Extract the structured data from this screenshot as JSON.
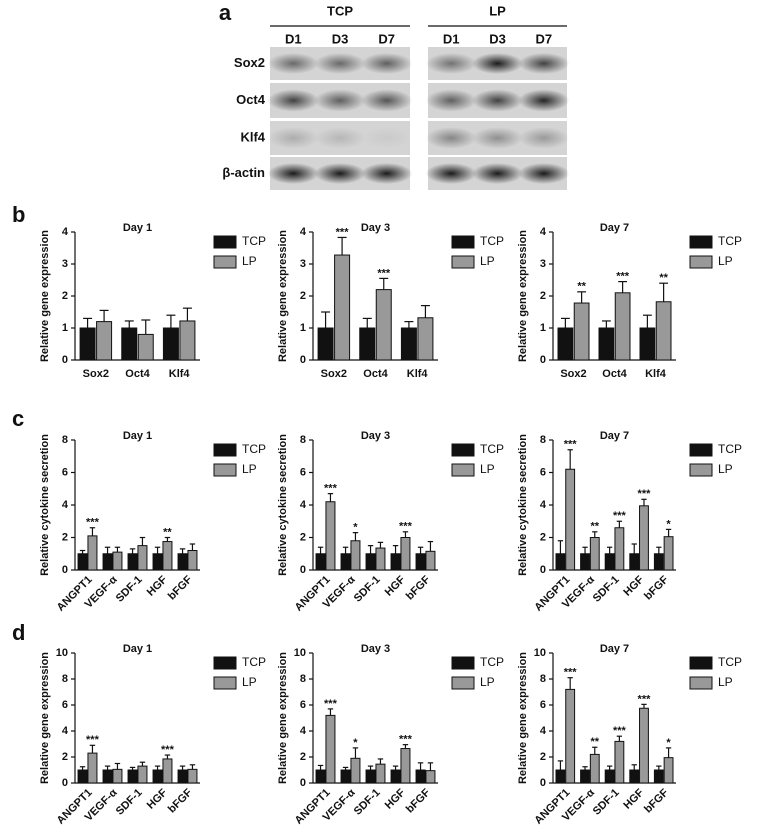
{
  "panel_labels": [
    "a",
    "b",
    "c",
    "d"
  ],
  "blot": {
    "groups": [
      "TCP",
      "LP"
    ],
    "timepoints": [
      [
        "D1",
        "D3",
        "D7"
      ],
      [
        "D1",
        "D3",
        "D7"
      ]
    ],
    "rows": [
      "Sox2",
      "Oct4",
      "Klf4",
      "β-actin"
    ]
  },
  "chart_data": [
    {
      "type": "bar",
      "title": "Day 1",
      "y_label": "Relative gene expression",
      "categories": [
        "Sox2",
        "Oct4",
        "Klf4"
      ],
      "ylim": [
        0,
        4
      ],
      "yticks": [
        0,
        1,
        2,
        3,
        4
      ],
      "series": [
        {
          "name": "TCP",
          "color": "#111111",
          "values": [
            1,
            1,
            1
          ],
          "errors": [
            0.3,
            0.22,
            0.4
          ]
        },
        {
          "name": "LP",
          "color": "#999999",
          "values": [
            1.2,
            0.8,
            1.22
          ],
          "errors": [
            0.35,
            0.45,
            0.4
          ]
        }
      ]
    },
    {
      "type": "bar",
      "title": "Day 3",
      "y_label": "Relative gene expression",
      "categories": [
        "Sox2",
        "Oct4",
        "Klf4"
      ],
      "ylim": [
        0,
        4
      ],
      "yticks": [
        0,
        1,
        2,
        3,
        4
      ],
      "series": [
        {
          "name": "TCP",
          "color": "#111111",
          "values": [
            1,
            1,
            1
          ],
          "errors": [
            0.5,
            0.3,
            0.2
          ]
        },
        {
          "name": "LP",
          "color": "#999999",
          "values": [
            3.28,
            2.2,
            1.32
          ],
          "errors": [
            0.55,
            0.35,
            0.38
          ],
          "stars": [
            "***",
            "***",
            null
          ]
        }
      ]
    },
    {
      "type": "bar",
      "title": "Day 7",
      "y_label": "Relative gene expression",
      "categories": [
        "Sox2",
        "Oct4",
        "Klf4"
      ],
      "ylim": [
        0,
        4
      ],
      "yticks": [
        0,
        1,
        2,
        3,
        4
      ],
      "series": [
        {
          "name": "TCP",
          "color": "#111111",
          "values": [
            1,
            1,
            1
          ],
          "errors": [
            0.3,
            0.22,
            0.4
          ]
        },
        {
          "name": "LP",
          "color": "#999999",
          "values": [
            1.78,
            2.1,
            1.82
          ],
          "errors": [
            0.35,
            0.35,
            0.58
          ],
          "stars": [
            "**",
            "***",
            "**"
          ]
        }
      ]
    },
    {
      "type": "bar",
      "title": "Day 1",
      "y_label": "Relative cytokine secretion",
      "categories": [
        "ANGPT1",
        "VEGF-α",
        "SDF-1",
        "HGF",
        "bFGF"
      ],
      "ylim": [
        0,
        8
      ],
      "yticks": [
        0,
        2,
        4,
        6,
        8
      ],
      "series": [
        {
          "name": "TCP",
          "color": "#111111",
          "values": [
            1,
            1,
            1,
            1,
            1
          ],
          "errors": [
            0.2,
            0.4,
            0.3,
            0.4,
            0.3
          ]
        },
        {
          "name": "LP",
          "color": "#999999",
          "values": [
            2.1,
            1.1,
            1.5,
            1.75,
            1.2
          ],
          "errors": [
            0.5,
            0.3,
            0.5,
            0.25,
            0.4
          ],
          "stars": [
            "***",
            null,
            null,
            "**",
            null
          ]
        }
      ]
    },
    {
      "type": "bar",
      "title": "Day 3",
      "y_label": "Relative cytokine secretion",
      "categories": [
        "ANGPT1",
        "VEGF-α",
        "SDF-1",
        "HGF",
        "bFGF"
      ],
      "ylim": [
        0,
        8
      ],
      "yticks": [
        0,
        2,
        4,
        6,
        8
      ],
      "series": [
        {
          "name": "TCP",
          "color": "#111111",
          "values": [
            1,
            1,
            1,
            1,
            1
          ],
          "errors": [
            0.4,
            0.4,
            0.5,
            0.5,
            0.4
          ]
        },
        {
          "name": "LP",
          "color": "#999999",
          "values": [
            4.2,
            1.8,
            1.35,
            2.0,
            1.15
          ],
          "errors": [
            0.5,
            0.5,
            0.35,
            0.35,
            0.6
          ],
          "stars": [
            "***",
            "*",
            null,
            "***",
            null
          ]
        }
      ]
    },
    {
      "type": "bar",
      "title": "Day 7",
      "y_label": "Relative cytokine secretion",
      "categories": [
        "ANGPT1",
        "VEGF-α",
        "SDF-1",
        "HGF",
        "bFGF"
      ],
      "ylim": [
        0,
        8
      ],
      "yticks": [
        0,
        2,
        4,
        6,
        8
      ],
      "series": [
        {
          "name": "TCP",
          "color": "#111111",
          "values": [
            1,
            1,
            1,
            1,
            1
          ],
          "errors": [
            0.8,
            0.4,
            0.4,
            0.6,
            0.4
          ]
        },
        {
          "name": "LP",
          "color": "#999999",
          "values": [
            6.2,
            2.0,
            2.6,
            3.95,
            2.05
          ],
          "errors": [
            1.2,
            0.35,
            0.4,
            0.4,
            0.45
          ],
          "stars": [
            "***",
            "**",
            "***",
            "***",
            "*"
          ]
        }
      ]
    },
    {
      "type": "bar",
      "title": "Day 1",
      "y_label": "Relative gene expression",
      "categories": [
        "ANGPT1",
        "VEGF-α",
        "SDF-1",
        "HGF",
        "bFGF"
      ],
      "ylim": [
        0,
        10
      ],
      "yticks": [
        0,
        2,
        4,
        6,
        8,
        10
      ],
      "series": [
        {
          "name": "TCP",
          "color": "#111111",
          "values": [
            1,
            1,
            1,
            1,
            1
          ],
          "errors": [
            0.25,
            0.3,
            0.2,
            0.3,
            0.3
          ]
        },
        {
          "name": "LP",
          "color": "#999999",
          "values": [
            2.3,
            1.05,
            1.3,
            1.85,
            1.05
          ],
          "errors": [
            0.6,
            0.45,
            0.3,
            0.3,
            0.35
          ],
          "stars": [
            "***",
            null,
            null,
            "***",
            null
          ]
        }
      ]
    },
    {
      "type": "bar",
      "title": "Day 3",
      "y_label": "Relative gene expression",
      "categories": [
        "ANGPT1",
        "VEGF-α",
        "SDF-1",
        "HGF",
        "bFGF"
      ],
      "ylim": [
        0,
        10
      ],
      "yticks": [
        0,
        2,
        4,
        6,
        8,
        10
      ],
      "series": [
        {
          "name": "TCP",
          "color": "#111111",
          "values": [
            1,
            1,
            1,
            1,
            1
          ],
          "errors": [
            0.35,
            0.2,
            0.3,
            0.3,
            0.55
          ]
        },
        {
          "name": "LP",
          "color": "#999999",
          "values": [
            5.2,
            1.9,
            1.45,
            2.65,
            0.95
          ],
          "errors": [
            0.5,
            0.8,
            0.4,
            0.3,
            0.6
          ],
          "stars": [
            "***",
            "*",
            null,
            "***",
            null
          ]
        }
      ]
    },
    {
      "type": "bar",
      "title": "Day 7",
      "y_label": "Relative gene expression",
      "categories": [
        "ANGPT1",
        "VEGF-α",
        "SDF-1",
        "HGF",
        "bFGF"
      ],
      "ylim": [
        0,
        10
      ],
      "yticks": [
        0,
        2,
        4,
        6,
        8,
        10
      ],
      "series": [
        {
          "name": "TCP",
          "color": "#111111",
          "values": [
            1,
            1,
            1,
            1,
            1
          ],
          "errors": [
            0.7,
            0.25,
            0.3,
            0.4,
            0.3
          ]
        },
        {
          "name": "LP",
          "color": "#999999",
          "values": [
            7.2,
            2.2,
            3.2,
            5.75,
            1.95
          ],
          "errors": [
            0.9,
            0.55,
            0.4,
            0.3,
            0.75
          ],
          "stars": [
            "***",
            "**",
            "***",
            "***",
            "*"
          ]
        }
      ]
    }
  ]
}
